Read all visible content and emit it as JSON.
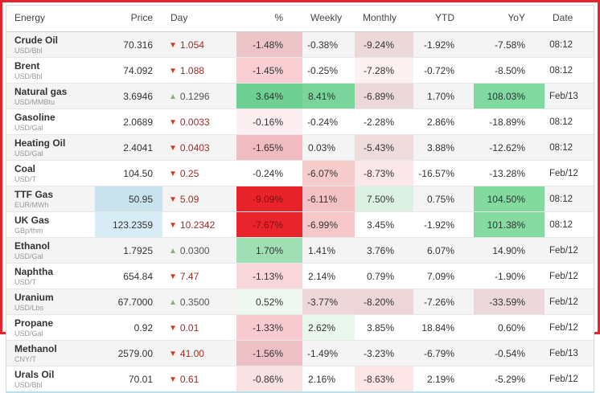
{
  "frame": {
    "border_color": "#e2262c"
  },
  "table": {
    "columns": [
      {
        "label": "Energy"
      },
      {
        "label": "Price"
      },
      {
        "label": "Day"
      },
      {
        "label": "%"
      },
      {
        "label": "Weekly"
      },
      {
        "label": "Monthly"
      },
      {
        "label": "YTD"
      },
      {
        "label": "YoY"
      },
      {
        "label": "Date"
      }
    ],
    "palette": {
      "down_arrow": "#d8352c",
      "down_text": "#9d2c24",
      "up_arrow": "#7ab56b",
      "up_text": "#555555",
      "strong_red_cell": "#e8232a",
      "strong_green_cell": "#6ed193",
      "price_highlight_blue": "#cfe7f1"
    },
    "rows": [
      {
        "name": "Crude Oil",
        "unit": "USD/Bbl",
        "price": "70.316",
        "arrow": "▼",
        "arrow_color": "#d8352c",
        "day": "1.054",
        "day_color": "#9d2c24",
        "pct": "-1.48%",
        "weekly": "-0.38%",
        "monthly": "-9.24%",
        "ytd": "-1.92%",
        "yoy": "-7.58%",
        "date": "08:12",
        "bg": {
          "pct": "#edc5c9",
          "monthly": "#edd8d9"
        }
      },
      {
        "name": "Brent",
        "unit": "USD/Bbl",
        "price": "74.092",
        "arrow": "▼",
        "arrow_color": "#d8352c",
        "day": "1.088",
        "day_color": "#9d2c24",
        "pct": "-1.45%",
        "weekly": "-0.25%",
        "monthly": "-7.28%",
        "ytd": "-0.72%",
        "yoy": "-8.50%",
        "date": "08:12",
        "bg": {
          "pct": "#f8ced3",
          "monthly": "#fdf0f1"
        }
      },
      {
        "name": "Natural gas",
        "unit": "USD/MMBtu",
        "price": "3.6946",
        "arrow": "▲",
        "arrow_color": "#7ab56b",
        "day": "0.1296",
        "day_color": "#555555",
        "pct": "3.64%",
        "weekly": "8.41%",
        "monthly": "-6.89%",
        "ytd": "1.70%",
        "yoy": "108.03%",
        "date": "Feb/13",
        "bg": {
          "pct": "#6ed193",
          "weekly": "#79d59c",
          "monthly": "#ecd8d9",
          "yoy": "#7fd9a1"
        }
      },
      {
        "name": "Gasoline",
        "unit": "USD/Gal",
        "price": "2.0689",
        "arrow": "▼",
        "arrow_color": "#d8352c",
        "day": "0.0033",
        "day_color": "#9d2c24",
        "pct": "-0.16%",
        "weekly": "-0.24%",
        "monthly": "-2.28%",
        "ytd": "2.86%",
        "yoy": "-18.89%",
        "date": "08:12",
        "bg": {
          "pct": "#fdeff1"
        }
      },
      {
        "name": "Heating Oil",
        "unit": "USD/Gal",
        "price": "2.4041",
        "arrow": "▼",
        "arrow_color": "#d8352c",
        "day": "0.0403",
        "day_color": "#9d2c24",
        "pct": "-1.65%",
        "weekly": "0.03%",
        "monthly": "-5.43%",
        "ytd": "3.88%",
        "yoy": "-12.62%",
        "date": "08:12",
        "bg": {
          "pct": "#f0bcc1",
          "monthly": "#eedcdd"
        }
      },
      {
        "name": "Coal",
        "unit": "USD/T",
        "price": "104.50",
        "arrow": "▼",
        "arrow_color": "#d8352c",
        "day": "0.25",
        "day_color": "#9d2c24",
        "pct": "-0.24%",
        "weekly": "-6.07%",
        "monthly": "-8.73%",
        "ytd": "-16.57%",
        "yoy": "-13.28%",
        "date": "Feb/12",
        "bg": {
          "weekly": "#f7cccd",
          "monthly": "#fbe7e9"
        }
      },
      {
        "name": "TTF Gas",
        "unit": "EUR/MWh",
        "price": "50.95",
        "arrow": "▼",
        "arrow_color": "#d8352c",
        "day": "5.09",
        "day_color": "#9d2c24",
        "pct": "-9.09%",
        "pct_color": "#7f1111",
        "weekly": "-6.11%",
        "monthly": "7.50%",
        "ytd": "0.75%",
        "yoy": "104.50%",
        "date": "08:12",
        "bg": {
          "price": "#c9e3ee",
          "pct": "#e8232a",
          "weekly": "#f2c2c5",
          "monthly": "#ddf1e3",
          "yoy": "#82da9f"
        }
      },
      {
        "name": "UK Gas",
        "unit": "GBp/thm",
        "price": "123.2359",
        "arrow": "▼",
        "arrow_color": "#d8352c",
        "day": "10.2342",
        "day_color": "#9d2c24",
        "pct": "-7.67%",
        "pct_color": "#7f1111",
        "weekly": "-6.99%",
        "monthly": "3.45%",
        "ytd": "-1.92%",
        "yoy": "101.38%",
        "date": "08:12",
        "bg": {
          "price": "#d7ecf5",
          "pct": "#ea242c",
          "weekly": "#f7c8ca",
          "yoy": "#86dba2"
        }
      },
      {
        "name": "Ethanol",
        "unit": "USD/Gal",
        "price": "1.7925",
        "arrow": "▲",
        "arrow_color": "#7ab56b",
        "day": "0.0300",
        "day_color": "#555555",
        "pct": "1.70%",
        "weekly": "1.41%",
        "monthly": "3.76%",
        "ytd": "6.07%",
        "yoy": "14.90%",
        "date": "Feb/12",
        "bg": {
          "pct": "#9fdfb3"
        }
      },
      {
        "name": "Naphtha",
        "unit": "USD/T",
        "price": "654.84",
        "arrow": "▼",
        "arrow_color": "#d8352c",
        "day": "7.47",
        "day_color": "#9d2c24",
        "pct": "-1.13%",
        "weekly": "2.14%",
        "monthly": "0.79%",
        "ytd": "7.09%",
        "yoy": "-1.90%",
        "date": "Feb/12",
        "bg": {
          "pct": "#f9d6da"
        }
      },
      {
        "name": "Uranium",
        "unit": "USD/Lbs",
        "price": "67.7000",
        "arrow": "▲",
        "arrow_color": "#7ab56b",
        "day": "0.3500",
        "day_color": "#555555",
        "pct": "0.52%",
        "weekly": "-3.77%",
        "monthly": "-8.20%",
        "ytd": "-7.26%",
        "yoy": "-33.59%",
        "date": "Feb/12",
        "bg": {
          "pct": "#eff8f1",
          "weekly": "#eed7d8",
          "monthly": "#ecd6d7",
          "yoy": "#ecd8da"
        }
      },
      {
        "name": "Propane",
        "unit": "USD/Gal",
        "price": "0.92",
        "arrow": "▼",
        "arrow_color": "#d8352c",
        "day": "0.01",
        "day_color": "#9d2c24",
        "pct": "-1.33%",
        "weekly": "2.62%",
        "monthly": "3.85%",
        "ytd": "18.84%",
        "yoy": "0.60%",
        "date": "Feb/12",
        "bg": {
          "pct": "#f7cbcf",
          "weekly": "#e9f7ed"
        }
      },
      {
        "name": "Methanol",
        "unit": "CNY/T",
        "price": "2579.00",
        "arrow": "▼",
        "arrow_color": "#d8352c",
        "day": "41.00",
        "day_color": "#9d2c24",
        "pct": "-1.56%",
        "weekly": "-1.49%",
        "monthly": "-3.23%",
        "ytd": "-6.79%",
        "yoy": "-0.54%",
        "date": "Feb/13",
        "bg": {
          "pct": "#edc0c5"
        }
      },
      {
        "name": "Urals Oil",
        "unit": "USD/Bbl",
        "price": "70.01",
        "arrow": "▼",
        "arrow_color": "#d8352c",
        "day": "0.61",
        "day_color": "#9d2c24",
        "pct": "-0.86%",
        "weekly": "2.16%",
        "monthly": "-8.63%",
        "ytd": "2.19%",
        "yoy": "-5.29%",
        "date": "Feb/12",
        "bg": {
          "pct": "#fae2e4",
          "monthly": "#fce6e8"
        }
      }
    ]
  }
}
